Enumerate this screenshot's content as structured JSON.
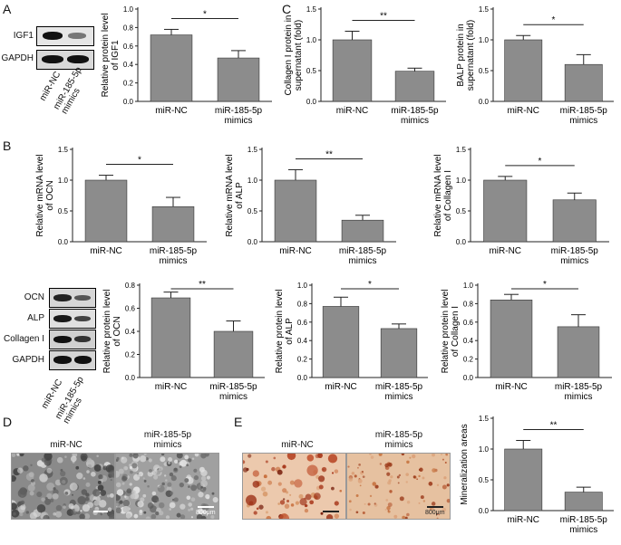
{
  "panels": {
    "A": "A",
    "B": "B",
    "C": "C",
    "D": "D",
    "E": "E"
  },
  "blots": {
    "A": {
      "rows": [
        "IGF1",
        "GAPDH"
      ],
      "lanes": [
        "miR-NC",
        "miR-185-5p mimics"
      ]
    },
    "B": {
      "rows": [
        "OCN",
        "ALP",
        "Collagen I",
        "GAPDH"
      ],
      "lanes": [
        "miR-NC",
        "miR-185-5p mimics"
      ]
    }
  },
  "micrographs": {
    "D": {
      "titles": [
        "miR-NC",
        "miR-185-5p\nmimics"
      ],
      "scale": "800μm"
    },
    "E": {
      "titles": [
        "miR-NC",
        "miR-185-5p\nmimics"
      ],
      "scale": "800μm"
    }
  },
  "colors": {
    "bar": "#8c8c8c",
    "axis": "#222222",
    "stain_bg": "#e9c2a6",
    "stain_spot": "#b84a2a",
    "sem_bg": "#7f7f7f"
  },
  "chart_data": [
    {
      "id": "A_igf1",
      "type": "bar",
      "categories": [
        "miR-NC",
        "miR-185-5p\nmimics"
      ],
      "values": [
        0.72,
        0.47
      ],
      "errors": [
        0.06,
        0.08
      ],
      "ylabel": "Relative protein level\nof IGF1",
      "ylim": [
        0,
        1.0
      ],
      "ticks": [
        0.0,
        0.2,
        0.4,
        0.6,
        0.8,
        1.0
      ],
      "tick_labels": [
        "0.0",
        "0.2",
        "0.4",
        "0.6",
        "0.8",
        "1.0"
      ],
      "sig": "*"
    },
    {
      "id": "C_col",
      "type": "bar",
      "categories": [
        "miR-NC",
        "miR-185-5p\nmimics"
      ],
      "values": [
        1.0,
        0.49
      ],
      "errors": [
        0.14,
        0.05
      ],
      "ylabel": "Collagen I protein in\nsupernatant (fold)",
      "ylim": [
        0,
        1.5
      ],
      "ticks": [
        0.0,
        0.5,
        1.0,
        1.5
      ],
      "tick_labels": [
        "0.0",
        "0.5",
        "1.0",
        "1.5"
      ],
      "sig": "**"
    },
    {
      "id": "C_balp",
      "type": "bar",
      "categories": [
        "miR-NC",
        "miR-185-5p\nmimics"
      ],
      "values": [
        1.0,
        0.6
      ],
      "errors": [
        0.07,
        0.16
      ],
      "ylabel": "BALP protein in\nsupernatant (fold)",
      "ylim": [
        0,
        1.5
      ],
      "ticks": [
        0.0,
        0.5,
        1.0,
        1.5
      ],
      "tick_labels": [
        "0.0",
        "0.5",
        "1.0",
        "1.5"
      ],
      "sig": "*"
    },
    {
      "id": "B_ocn_mrna",
      "type": "bar",
      "categories": [
        "miR-NC",
        "miR-185-5p\nmimics"
      ],
      "values": [
        1.0,
        0.57
      ],
      "errors": [
        0.08,
        0.15
      ],
      "ylabel": "Relative mRNA level\nof OCN",
      "ylim": [
        0,
        1.5
      ],
      "ticks": [
        0.0,
        0.5,
        1.0,
        1.5
      ],
      "tick_labels": [
        "0.0",
        "0.5",
        "1.0",
        "1.5"
      ],
      "sig": "*"
    },
    {
      "id": "B_alp_mrna",
      "type": "bar",
      "categories": [
        "miR-NC",
        "miR-185-5p\nmimics"
      ],
      "values": [
        1.0,
        0.35
      ],
      "errors": [
        0.17,
        0.08
      ],
      "ylabel": "Relative mRNA level\nof ALP",
      "ylim": [
        0,
        1.5
      ],
      "ticks": [
        0.0,
        0.5,
        1.0,
        1.5
      ],
      "tick_labels": [
        "0.0",
        "0.5",
        "1.0",
        "1.5"
      ],
      "sig": "**"
    },
    {
      "id": "B_col_mrna",
      "type": "bar",
      "categories": [
        "miR-NC",
        "miR-185-5p\nmimics"
      ],
      "values": [
        1.0,
        0.68
      ],
      "errors": [
        0.06,
        0.11
      ],
      "ylabel": "Relative mRNA level\nof Collagen I",
      "ylim": [
        0,
        1.5
      ],
      "ticks": [
        0.0,
        0.5,
        1.0,
        1.5
      ],
      "tick_labels": [
        "0.0",
        "0.5",
        "1.0",
        "1.5"
      ],
      "sig": "*"
    },
    {
      "id": "B_ocn_prot",
      "type": "bar",
      "categories": [
        "miR-NC",
        "miR-185-5p\nmimics"
      ],
      "values": [
        0.69,
        0.4
      ],
      "errors": [
        0.05,
        0.09
      ],
      "ylabel": "Relative protein level\nof OCN",
      "ylim": [
        0,
        0.8
      ],
      "ticks": [
        0.0,
        0.2,
        0.4,
        0.6,
        0.8
      ],
      "tick_labels": [
        "0.0",
        "0.2",
        "0.4",
        "0.6",
        "0.8"
      ],
      "sig": "**"
    },
    {
      "id": "B_alp_prot",
      "type": "bar",
      "categories": [
        "miR-NC",
        "miR-185-5p\nmimics"
      ],
      "values": [
        0.77,
        0.53
      ],
      "errors": [
        0.1,
        0.05
      ],
      "ylabel": "Relative protein level\nof ALP",
      "ylim": [
        0,
        1.0
      ],
      "ticks": [
        0.0,
        0.2,
        0.4,
        0.6,
        0.8,
        1.0
      ],
      "tick_labels": [
        "0.0",
        "0.2",
        "0.4",
        "0.6",
        "0.8",
        "1.0"
      ],
      "sig": "*"
    },
    {
      "id": "B_col_prot",
      "type": "bar",
      "categories": [
        "miR-NC",
        "miR-185-5p\nmimics"
      ],
      "values": [
        0.84,
        0.55
      ],
      "errors": [
        0.06,
        0.13
      ],
      "ylabel": "Relative protein level\nof Collagen I",
      "ylim": [
        0,
        1.0
      ],
      "ticks": [
        0.0,
        0.2,
        0.4,
        0.6,
        0.8,
        1.0
      ],
      "tick_labels": [
        "0.0",
        "0.2",
        "0.4",
        "0.6",
        "0.8",
        "1.0"
      ],
      "sig": "*"
    },
    {
      "id": "E_min",
      "type": "bar",
      "categories": [
        "miR-NC",
        "miR-185-5p\nmimics"
      ],
      "values": [
        1.0,
        0.3
      ],
      "errors": [
        0.14,
        0.08
      ],
      "ylabel": "Mineralization areas",
      "ylim": [
        0,
        1.5
      ],
      "ticks": [
        0.0,
        0.5,
        1.0,
        1.5
      ],
      "tick_labels": [
        "0.0",
        "0.5",
        "1.0",
        "1.5"
      ],
      "sig": "**"
    }
  ]
}
